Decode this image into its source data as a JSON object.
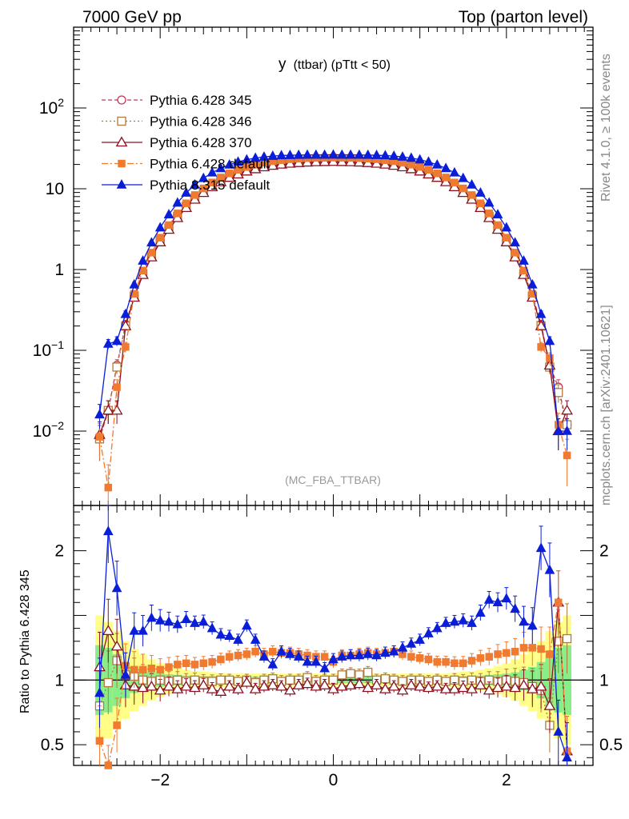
{
  "header": {
    "left": "7000 GeV pp",
    "right": "Top (parton level)"
  },
  "side": {
    "rivet": "Rivet 4.1.0, ≥ 100k events",
    "mcplots": "mcplots.cern.ch [arXiv:2401.10621]"
  },
  "chart_data": [
    {
      "type": "line",
      "title": "y (ttbar) (pTtt < 50)",
      "title_main": "y",
      "title_sub": "(ttbar) (pTtt < 50)",
      "watermark": "(MC_FBA_TTBAR)",
      "yscale": "log",
      "xlim": [
        -3.0,
        3.0
      ],
      "ylim": [
        0.0012,
        1000
      ],
      "yticks": [
        {
          "value": 100,
          "label": "10",
          "exp": "2"
        },
        {
          "value": 10,
          "label": "10",
          "exp": ""
        },
        {
          "value": 1,
          "label": "1",
          "exp": ""
        },
        {
          "value": 0.1,
          "label": "10",
          "exp": "−1"
        },
        {
          "value": 0.01,
          "label": "10",
          "exp": "−2"
        }
      ],
      "x": [
        -2.7,
        -2.6,
        -2.5,
        -2.4,
        -2.3,
        -2.2,
        -2.1,
        -2.0,
        -1.9,
        -1.8,
        -1.7,
        -1.6,
        -1.5,
        -1.4,
        -1.3,
        -1.2,
        -1.1,
        -1.0,
        -0.9,
        -0.8,
        -0.7,
        -0.6,
        -0.5,
        -0.4,
        -0.3,
        -0.2,
        -0.1,
        0.0,
        0.1,
        0.2,
        0.3,
        0.4,
        0.5,
        0.6,
        0.7,
        0.8,
        0.9,
        1.0,
        1.1,
        1.2,
        1.3,
        1.4,
        1.5,
        1.6,
        1.7,
        1.8,
        1.9,
        2.0,
        2.1,
        2.2,
        2.3,
        2.4,
        2.5,
        2.6,
        2.7
      ],
      "series": [
        {
          "name": "Pythia 6.428 345",
          "color": "#cc3355",
          "marker": "circle-open",
          "dash": "5,3",
          "values": [
            0.008,
            0.018,
            0.065,
            0.21,
            0.48,
            0.9,
            1.5,
            2.3,
            3.3,
            4.6,
            6.1,
            7.7,
            9.3,
            11.0,
            12.7,
            14.3,
            15.8,
            17.1,
            18.3,
            19.3,
            20.1,
            20.8,
            21.3,
            21.7,
            22.0,
            22.2,
            22.3,
            22.4,
            22.3,
            22.2,
            22.0,
            21.7,
            21.3,
            20.8,
            20.1,
            19.3,
            18.3,
            17.1,
            15.8,
            14.3,
            12.7,
            11.0,
            9.3,
            7.7,
            6.1,
            4.6,
            3.3,
            2.3,
            1.5,
            0.9,
            0.48,
            0.21,
            0.065,
            0.035,
            0.012
          ]
        },
        {
          "name": "Pythia 6.428 346",
          "color": "#b07a3c",
          "marker": "square-open",
          "dash": "2,3",
          "values": [
            0.008,
            0.018,
            0.062,
            0.2,
            0.47,
            0.89,
            1.49,
            2.28,
            3.27,
            4.55,
            6.05,
            7.65,
            9.25,
            10.95,
            12.6,
            14.2,
            15.7,
            17.0,
            18.2,
            19.2,
            20.0,
            20.7,
            21.2,
            21.6,
            21.9,
            22.1,
            22.2,
            22.3,
            22.2,
            22.1,
            21.9,
            21.6,
            21.2,
            20.7,
            20.0,
            19.2,
            18.2,
            17.0,
            15.7,
            14.2,
            12.6,
            10.95,
            9.25,
            7.65,
            6.05,
            4.55,
            3.27,
            2.28,
            1.49,
            0.89,
            0.47,
            0.2,
            0.062,
            0.03,
            0.012
          ]
        },
        {
          "name": "Pythia 6.428 370",
          "color": "#8a1020",
          "marker": "triangle-open",
          "dash": "",
          "values": [
            0.009,
            0.018,
            0.018,
            0.2,
            0.45,
            0.86,
            1.42,
            2.18,
            3.12,
            4.35,
            5.8,
            7.35,
            8.9,
            10.5,
            12.1,
            13.7,
            15.1,
            16.4,
            17.5,
            18.5,
            19.3,
            20.0,
            20.5,
            20.9,
            21.2,
            21.4,
            21.5,
            21.6,
            21.5,
            21.4,
            21.2,
            20.9,
            20.5,
            20.0,
            19.3,
            18.5,
            17.5,
            16.4,
            15.1,
            13.7,
            12.1,
            10.5,
            8.9,
            7.35,
            5.8,
            4.35,
            3.12,
            2.18,
            1.42,
            0.86,
            0.45,
            0.2,
            0.065,
            0.01,
            0.018
          ]
        },
        {
          "name": "Pythia 6.428 default",
          "color": "#f07a30",
          "marker": "square-filled",
          "dash": "8,3,2,3",
          "values": [
            0.0085,
            0.002,
            0.035,
            0.11,
            0.5,
            0.97,
            1.62,
            2.48,
            3.55,
            4.95,
            6.6,
            8.35,
            10.1,
            11.95,
            13.8,
            15.5,
            17.2,
            18.6,
            19.9,
            21.0,
            21.9,
            22.6,
            23.2,
            23.6,
            23.9,
            24.1,
            24.2,
            24.3,
            24.2,
            24.1,
            23.9,
            23.6,
            23.2,
            22.6,
            21.9,
            21.0,
            19.9,
            18.6,
            17.2,
            15.5,
            13.8,
            11.95,
            10.1,
            8.35,
            6.6,
            4.95,
            3.55,
            2.48,
            1.62,
            0.97,
            0.5,
            0.11,
            0.08,
            0.012,
            0.005
          ]
        },
        {
          "name": "Pythia 8.315 default",
          "color": "#0a1ed8",
          "marker": "triangle-filled",
          "dash": "",
          "values": [
            0.016,
            0.12,
            0.13,
            0.28,
            0.65,
            1.28,
            2.15,
            3.3,
            4.8,
            6.7,
            8.9,
            11.2,
            13.5,
            15.8,
            17.9,
            19.8,
            21.5,
            22.9,
            24.0,
            24.8,
            25.4,
            25.8,
            26.0,
            26.1,
            26.2,
            26.2,
            26.2,
            26.3,
            26.2,
            26.2,
            26.2,
            26.1,
            26.0,
            25.8,
            25.4,
            24.8,
            24.0,
            22.9,
            21.5,
            19.8,
            17.9,
            15.8,
            13.5,
            11.2,
            8.9,
            6.7,
            4.8,
            3.3,
            2.15,
            1.28,
            0.65,
            0.28,
            0.13,
            0.01,
            0.01
          ]
        }
      ]
    },
    {
      "type": "line",
      "ylabel": "Ratio to Pythia 6.428 345",
      "xlim": [
        -3.0,
        3.0
      ],
      "ylim": [
        0.34,
        2.35
      ],
      "xticks": [
        {
          "value": -2,
          "label": "−2"
        },
        {
          "value": 0,
          "label": "0"
        },
        {
          "value": 2,
          "label": "2"
        }
      ],
      "yticks": [
        {
          "value": 2,
          "label": "2"
        },
        {
          "value": 1,
          "label": "1"
        },
        {
          "value": 0.5,
          "label": "0.5"
        }
      ],
      "band_inner_color": "#88ee88",
      "band_outer_color": "#ffff88",
      "band_inner": [
        0.27,
        0.25,
        0.2,
        0.14,
        0.1,
        0.08,
        0.06,
        0.05,
        0.045,
        0.04,
        0.035,
        0.03,
        0.03,
        0.03,
        0.025,
        0.025,
        0.025,
        0.025,
        0.025,
        0.025,
        0.025,
        0.025,
        0.025,
        0.025,
        0.025,
        0.025,
        0.025,
        0.025,
        0.025,
        0.025,
        0.025,
        0.025,
        0.025,
        0.025,
        0.025,
        0.025,
        0.025,
        0.025,
        0.025,
        0.025,
        0.025,
        0.03,
        0.03,
        0.03,
        0.035,
        0.04,
        0.045,
        0.05,
        0.06,
        0.08,
        0.1,
        0.14,
        0.2,
        0.25,
        0.27
      ],
      "band_outer": [
        0.5,
        0.45,
        0.38,
        0.3,
        0.24,
        0.2,
        0.16,
        0.13,
        0.11,
        0.09,
        0.08,
        0.07,
        0.065,
        0.06,
        0.055,
        0.05,
        0.05,
        0.05,
        0.05,
        0.05,
        0.05,
        0.05,
        0.05,
        0.05,
        0.05,
        0.05,
        0.05,
        0.05,
        0.05,
        0.05,
        0.05,
        0.05,
        0.05,
        0.05,
        0.05,
        0.05,
        0.05,
        0.05,
        0.05,
        0.05,
        0.05,
        0.06,
        0.065,
        0.07,
        0.08,
        0.09,
        0.11,
        0.13,
        0.16,
        0.2,
        0.24,
        0.3,
        0.38,
        0.45,
        0.5
      ],
      "series": [
        {
          "name": "Pythia 6.428 346",
          "color": "#b07a3c",
          "marker": "square-open",
          "dash": "2,3",
          "values": [
            0.8,
            0.98,
            1.15,
            1.04,
            1.03,
            1.0,
            0.99,
            1.0,
            0.99,
            1.0,
            0.99,
            1.0,
            0.99,
            0.99,
            1.0,
            1.0,
            0.99,
            1.0,
            0.98,
            1.0,
            1.01,
            0.99,
            1.0,
            1.0,
            1.02,
            0.99,
            1.0,
            1.0,
            1.04,
            1.05,
            1.04,
            1.06,
            1.0,
            1.01,
            1.0,
            0.99,
            1.0,
            1.0,
            0.99,
            1.0,
            0.99,
            1.0,
            0.99,
            1.0,
            0.99,
            1.0,
            0.99,
            1.0,
            0.99,
            0.98,
            0.95,
            0.92,
            0.65,
            1.3,
            1.32
          ]
        },
        {
          "name": "Pythia 6.428 370",
          "color": "#8a1020",
          "marker": "triangle-open",
          "dash": "",
          "values": [
            1.1,
            1.38,
            1.26,
            0.96,
            0.95,
            0.94,
            0.95,
            0.92,
            0.95,
            0.93,
            0.95,
            0.94,
            0.96,
            0.93,
            0.91,
            0.95,
            0.93,
            0.98,
            0.93,
            0.95,
            0.96,
            0.95,
            0.92,
            0.96,
            0.97,
            0.95,
            0.96,
            0.93,
            0.95,
            0.96,
            0.97,
            0.94,
            0.96,
            0.93,
            0.95,
            0.92,
            0.96,
            0.95,
            0.94,
            0.95,
            0.93,
            0.93,
            0.94,
            0.93,
            0.96,
            0.92,
            0.94,
            0.95,
            0.94,
            0.96,
            0.93,
            0.95,
            0.8,
            1.6,
            0.45
          ]
        },
        {
          "name": "Pythia 6.428 default",
          "color": "#f07a30",
          "marker": "square-filled",
          "dash": "8,3,2,3",
          "values": [
            0.53,
            0.25,
            0.65,
            1.11,
            1.08,
            1.08,
            1.09,
            1.08,
            1.1,
            1.12,
            1.13,
            1.12,
            1.13,
            1.14,
            1.16,
            1.18,
            1.19,
            1.2,
            1.22,
            1.2,
            1.22,
            1.21,
            1.21,
            1.2,
            1.19,
            1.18,
            1.18,
            1.14,
            1.19,
            1.19,
            1.2,
            1.21,
            1.2,
            1.21,
            1.22,
            1.2,
            1.18,
            1.17,
            1.16,
            1.14,
            1.14,
            1.13,
            1.13,
            1.15,
            1.17,
            1.18,
            1.2,
            1.21,
            1.22,
            1.25,
            1.25,
            1.24,
            1.2,
            1.6,
            0.45
          ]
        },
        {
          "name": "Pythia 8.315 default",
          "color": "#0a1ed8",
          "marker": "triangle-filled",
          "dash": "",
          "values": [
            0.9,
            2.15,
            1.71,
            1.04,
            1.38,
            1.38,
            1.48,
            1.46,
            1.45,
            1.43,
            1.47,
            1.44,
            1.45,
            1.4,
            1.35,
            1.34,
            1.31,
            1.42,
            1.31,
            1.18,
            1.12,
            1.22,
            1.2,
            1.18,
            1.14,
            1.14,
            1.09,
            1.16,
            1.18,
            1.19,
            1.19,
            1.2,
            1.19,
            1.21,
            1.22,
            1.25,
            1.28,
            1.31,
            1.36,
            1.4,
            1.44,
            1.45,
            1.46,
            1.44,
            1.52,
            1.62,
            1.6,
            1.63,
            1.55,
            1.45,
            1.42,
            2.02,
            1.85,
            0.6,
            0.4
          ]
        }
      ]
    }
  ]
}
